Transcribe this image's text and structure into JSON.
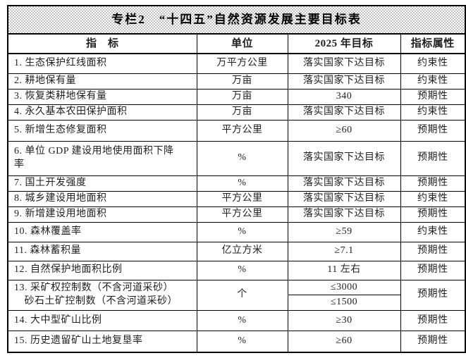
{
  "title": "专栏2　“十四五”自然资源发展主要目标表",
  "colors": {
    "border": "#000000",
    "text": "#1f1f1f",
    "title_hatch_gray": "#c2c2c2",
    "background": "#ffffff"
  },
  "table": {
    "headers": [
      "指　标",
      "单位",
      "2025 年目标",
      "指标属性"
    ],
    "rows": [
      {
        "indicator": "1. 生态保护红线面积",
        "unit": "万平方公里",
        "target": "落实国家下达目标",
        "attribute": "约束性"
      },
      {
        "indicator": "2. 耕地保有量",
        "unit": "万亩",
        "target": "落实国家下达目标",
        "attribute": "约束性"
      },
      {
        "indicator": "3. 恢复类耕地保有量",
        "unit": "万亩",
        "target": "340",
        "attribute": "预期性"
      },
      {
        "indicator": "4. 永久基本农田保护面积",
        "unit": "万亩",
        "target": "落实国家下达目标",
        "attribute": "约束性"
      },
      {
        "indicator": "5. 新增生态修复面积",
        "unit": "平方公里",
        "target": "≥60",
        "attribute": "预期性"
      },
      {
        "indicator": "6. 单位 GDP 建设用地使用面积下降\n率",
        "unit": "%",
        "target": "落实国家下达目标",
        "attribute": "预期性"
      },
      {
        "indicator": "7. 国土开发强度",
        "unit": "%",
        "target": "落实国家下达目标",
        "attribute": "预期性"
      },
      {
        "indicator": "8. 城乡建设用地面积",
        "unit": "平方公里",
        "target": "落实国家下达目标",
        "attribute": "约束性"
      },
      {
        "indicator": "9. 新增建设用地面积",
        "unit": "平方公里",
        "target": "落实国家下达目标",
        "attribute": "预期性"
      },
      {
        "indicator": "10. 森林覆盖率",
        "unit": "%",
        "target": "≥59",
        "attribute": "约束性"
      },
      {
        "indicator": "11. 森林蓄积量",
        "unit": "亿立方米",
        "target": "≥7.1",
        "attribute": "预期性"
      },
      {
        "indicator": "12. 自然保护地面积比例",
        "unit": "%",
        "target": "11 左右",
        "attribute": "预期性"
      },
      {
        "indicator": "13. 采矿权控制数（不含河道采砂）\n　砂石土矿控制数（不含河道采砂）",
        "unit": "个",
        "target_top": "≤3000",
        "target_bottom": "≤1500",
        "attribute": "预期性"
      },
      {
        "indicator": "14. 大中型矿山比例",
        "unit": "%",
        "target": "≥30",
        "attribute": "预期性"
      },
      {
        "indicator": "15. 历史遗留矿山土地复垦率",
        "unit": "%",
        "target": "≥60",
        "attribute": "预期性"
      }
    ]
  }
}
